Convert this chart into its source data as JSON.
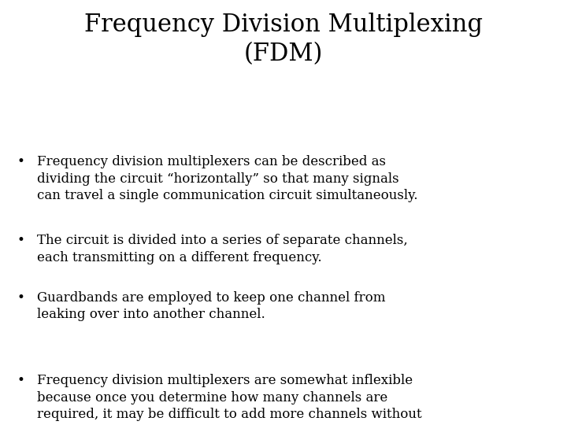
{
  "title_line1": "Frequency Division Multiplexing",
  "title_line2": "(FDM)",
  "bullets": [
    "Frequency division multiplexers can be described as\ndividing the circuit “horizontally” so that many signals\ncan travel a single communication circuit simultaneously.",
    "The circuit is divided into a series of separate channels,\neach transmitting on a different frequency.",
    "Guardbands are employed to keep one channel from\nleaking over into another channel.",
    "Frequency division multiplexers are somewhat inflexible\nbecause once you determine how many channels are\nrequired, it may be difficult to add more channels without\npurchasing an entirely new multiplexer."
  ],
  "background_color": "#ffffff",
  "text_color": "#000000",
  "title_fontsize": 22,
  "bullet_fontsize": 12.0,
  "font_family": "DejaVu Serif"
}
